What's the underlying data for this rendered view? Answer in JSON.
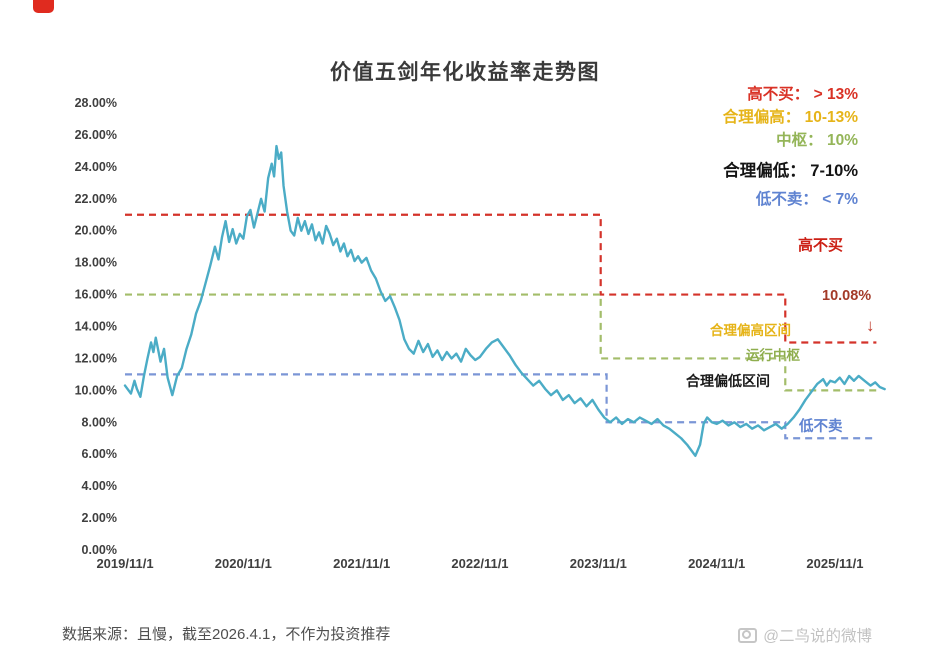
{
  "page": {
    "title": "价值五剑年化收益率走势图",
    "source_note": "数据来源：且慢，截至2026.4.1，不作为投资推荐",
    "watermark": "@二鸟说的微博"
  },
  "legend": {
    "items": [
      {
        "label": "高不买：",
        "value": " > 13%",
        "color": "#d93226"
      },
      {
        "label": "合理偏高：",
        "value": " 10-13%",
        "color": "#e6b419"
      },
      {
        "label": "中枢：",
        "value": " 10%",
        "color": "#94b558"
      },
      {
        "label": "合理偏低：",
        "value": " 7-10%",
        "color": "#141414"
      },
      {
        "label": "低不卖：",
        "value": " < 7%",
        "color": "#5f83d1"
      }
    ]
  },
  "annotations": [
    {
      "text": "高不买",
      "color": "#cc1f14"
    },
    {
      "text": "10.08%",
      "color": "#a33a28"
    },
    {
      "text": "↓",
      "color": "#c0392b"
    },
    {
      "text": "合理偏高区间",
      "color": "#e6b419"
    },
    {
      "text": "运行中枢",
      "color": "#8fae4e"
    },
    {
      "text": "合理偏低区间",
      "color": "#1a1a1a"
    },
    {
      "text": "低不卖",
      "color": "#5f83d1"
    }
  ],
  "chart_data": {
    "type": "line",
    "title": "价值五剑年化收益率走势图",
    "xlabel": "",
    "ylabel": "",
    "ylim": [
      0,
      28
    ],
    "y_tick_step": 2,
    "y_tick_labels": [
      "0.00%",
      "2.00%",
      "4.00%",
      "6.00%",
      "8.00%",
      "10.00%",
      "12.00%",
      "14.00%",
      "16.00%",
      "18.00%",
      "20.00%",
      "22.00%",
      "24.00%",
      "26.00%",
      "28.00%"
    ],
    "x_ticks": [
      "2019/11/1",
      "2020/11/1",
      "2021/11/1",
      "2022/11/1",
      "2023/11/1",
      "2024/11/1",
      "2025/11/1"
    ],
    "x_domain": [
      0,
      6.42
    ],
    "grid": false,
    "legend_position": "top-right",
    "current_value_pct": 10.08,
    "series": [
      {
        "name": "价值五剑年化收益率",
        "color": "#4BACC6",
        "points": [
          [
            0.0,
            10.3
          ],
          [
            0.05,
            9.8
          ],
          [
            0.08,
            10.6
          ],
          [
            0.1,
            10.1
          ],
          [
            0.13,
            9.6
          ],
          [
            0.16,
            10.9
          ],
          [
            0.19,
            12.0
          ],
          [
            0.22,
            13.0
          ],
          [
            0.24,
            12.4
          ],
          [
            0.26,
            13.3
          ],
          [
            0.3,
            11.8
          ],
          [
            0.33,
            12.6
          ],
          [
            0.36,
            10.8
          ],
          [
            0.4,
            9.7
          ],
          [
            0.44,
            10.9
          ],
          [
            0.48,
            11.4
          ],
          [
            0.52,
            12.6
          ],
          [
            0.56,
            13.5
          ],
          [
            0.6,
            14.8
          ],
          [
            0.64,
            15.6
          ],
          [
            0.68,
            16.7
          ],
          [
            0.72,
            17.8
          ],
          [
            0.76,
            19.0
          ],
          [
            0.79,
            18.2
          ],
          [
            0.82,
            19.6
          ],
          [
            0.85,
            20.6
          ],
          [
            0.88,
            19.3
          ],
          [
            0.91,
            20.1
          ],
          [
            0.94,
            19.2
          ],
          [
            0.97,
            19.8
          ],
          [
            1.0,
            19.5
          ],
          [
            1.03,
            20.9
          ],
          [
            1.06,
            21.3
          ],
          [
            1.09,
            20.2
          ],
          [
            1.12,
            21.1
          ],
          [
            1.15,
            22.0
          ],
          [
            1.18,
            21.2
          ],
          [
            1.21,
            23.3
          ],
          [
            1.24,
            24.2
          ],
          [
            1.26,
            23.4
          ],
          [
            1.28,
            25.3
          ],
          [
            1.3,
            24.5
          ],
          [
            1.32,
            24.9
          ],
          [
            1.34,
            22.8
          ],
          [
            1.37,
            21.2
          ],
          [
            1.4,
            20.0
          ],
          [
            1.43,
            19.7
          ],
          [
            1.46,
            20.8
          ],
          [
            1.49,
            20.0
          ],
          [
            1.52,
            20.6
          ],
          [
            1.55,
            19.8
          ],
          [
            1.58,
            20.4
          ],
          [
            1.61,
            19.4
          ],
          [
            1.64,
            19.9
          ],
          [
            1.67,
            19.2
          ],
          [
            1.7,
            20.3
          ],
          [
            1.73,
            19.8
          ],
          [
            1.76,
            19.1
          ],
          [
            1.79,
            19.5
          ],
          [
            1.82,
            18.7
          ],
          [
            1.85,
            19.2
          ],
          [
            1.88,
            18.4
          ],
          [
            1.91,
            18.8
          ],
          [
            1.94,
            18.1
          ],
          [
            1.97,
            18.4
          ],
          [
            2.0,
            18.0
          ],
          [
            2.04,
            18.3
          ],
          [
            2.08,
            17.5
          ],
          [
            2.12,
            17.0
          ],
          [
            2.16,
            16.2
          ],
          [
            2.2,
            15.6
          ],
          [
            2.24,
            15.9
          ],
          [
            2.28,
            15.2
          ],
          [
            2.32,
            14.4
          ],
          [
            2.36,
            13.2
          ],
          [
            2.4,
            12.6
          ],
          [
            2.44,
            12.3
          ],
          [
            2.48,
            13.1
          ],
          [
            2.52,
            12.4
          ],
          [
            2.56,
            12.9
          ],
          [
            2.6,
            12.1
          ],
          [
            2.64,
            12.5
          ],
          [
            2.68,
            11.9
          ],
          [
            2.72,
            12.4
          ],
          [
            2.76,
            12.0
          ],
          [
            2.8,
            12.3
          ],
          [
            2.84,
            11.8
          ],
          [
            2.88,
            12.6
          ],
          [
            2.92,
            12.2
          ],
          [
            2.96,
            11.9
          ],
          [
            3.0,
            12.1
          ],
          [
            3.05,
            12.6
          ],
          [
            3.1,
            13.0
          ],
          [
            3.15,
            13.2
          ],
          [
            3.2,
            12.7
          ],
          [
            3.25,
            12.2
          ],
          [
            3.3,
            11.6
          ],
          [
            3.35,
            11.1
          ],
          [
            3.4,
            10.7
          ],
          [
            3.45,
            10.3
          ],
          [
            3.5,
            10.6
          ],
          [
            3.55,
            10.1
          ],
          [
            3.6,
            9.7
          ],
          [
            3.65,
            10.0
          ],
          [
            3.7,
            9.4
          ],
          [
            3.75,
            9.7
          ],
          [
            3.8,
            9.2
          ],
          [
            3.85,
            9.5
          ],
          [
            3.9,
            9.0
          ],
          [
            3.95,
            9.4
          ],
          [
            4.0,
            8.8
          ],
          [
            4.05,
            8.3
          ],
          [
            4.1,
            8.0
          ],
          [
            4.15,
            8.3
          ],
          [
            4.2,
            7.9
          ],
          [
            4.25,
            8.2
          ],
          [
            4.3,
            8.0
          ],
          [
            4.35,
            8.3
          ],
          [
            4.4,
            8.1
          ],
          [
            4.45,
            7.9
          ],
          [
            4.5,
            8.2
          ],
          [
            4.55,
            7.8
          ],
          [
            4.6,
            7.6
          ],
          [
            4.65,
            7.3
          ],
          [
            4.7,
            7.0
          ],
          [
            4.75,
            6.6
          ],
          [
            4.79,
            6.2
          ],
          [
            4.82,
            5.9
          ],
          [
            4.86,
            6.6
          ],
          [
            4.89,
            7.9
          ],
          [
            4.92,
            8.3
          ],
          [
            4.96,
            8.0
          ],
          [
            5.0,
            7.9
          ],
          [
            5.05,
            8.1
          ],
          [
            5.1,
            7.8
          ],
          [
            5.15,
            8.0
          ],
          [
            5.2,
            7.7
          ],
          [
            5.25,
            7.9
          ],
          [
            5.3,
            7.6
          ],
          [
            5.35,
            7.8
          ],
          [
            5.4,
            7.5
          ],
          [
            5.45,
            7.7
          ],
          [
            5.5,
            7.9
          ],
          [
            5.55,
            7.6
          ],
          [
            5.6,
            7.9
          ],
          [
            5.65,
            8.3
          ],
          [
            5.7,
            8.8
          ],
          [
            5.75,
            9.4
          ],
          [
            5.8,
            9.9
          ],
          [
            5.85,
            10.4
          ],
          [
            5.9,
            10.7
          ],
          [
            5.93,
            10.3
          ],
          [
            5.96,
            10.6
          ],
          [
            6.0,
            10.5
          ],
          [
            6.04,
            10.8
          ],
          [
            6.08,
            10.4
          ],
          [
            6.12,
            10.9
          ],
          [
            6.16,
            10.6
          ],
          [
            6.2,
            10.9
          ],
          [
            6.25,
            10.6
          ],
          [
            6.3,
            10.3
          ],
          [
            6.34,
            10.5
          ],
          [
            6.38,
            10.2
          ],
          [
            6.42,
            10.08
          ]
        ]
      }
    ],
    "bands": [
      {
        "name": "threshold-buy-no-more",
        "label": "高不买",
        "color": "#d4332a",
        "points": [
          [
            0,
            21
          ],
          [
            4.02,
            21
          ],
          [
            4.02,
            16
          ],
          [
            5.58,
            16
          ],
          [
            5.58,
            13
          ],
          [
            6.35,
            13
          ]
        ]
      },
      {
        "name": "threshold-center",
        "label": "中枢",
        "color": "#a3bd6a",
        "points": [
          [
            0,
            16
          ],
          [
            4.02,
            16
          ],
          [
            4.02,
            12
          ],
          [
            5.58,
            12
          ],
          [
            5.58,
            10
          ],
          [
            6.35,
            10
          ]
        ]
      },
      {
        "name": "threshold-sell-no",
        "label": "低不卖",
        "color": "#7b96d6",
        "points": [
          [
            0,
            11
          ],
          [
            4.07,
            11
          ],
          [
            4.07,
            8
          ],
          [
            5.58,
            8
          ],
          [
            5.58,
            7
          ],
          [
            6.35,
            7
          ]
        ]
      }
    ]
  }
}
